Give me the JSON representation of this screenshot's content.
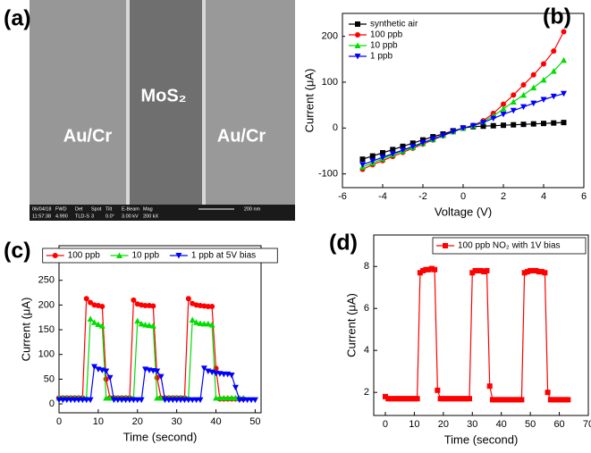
{
  "image_panel": {
    "panel_label": "(a)",
    "material_label": "MoS₂",
    "electrode_labels": [
      "Au/Cr",
      "Au/Cr"
    ],
    "info_bar": {
      "headers": [
        "06/04/18",
        "FWD",
        "Det",
        "Spot",
        "Tilt",
        "E-Beam",
        "Mag"
      ],
      "values": [
        "11:57:38",
        "4.990",
        "TLD-S",
        "3",
        "0.0°",
        "3.00 kV",
        "200 kX"
      ]
    },
    "scale_bar": "200 nm"
  },
  "chart_data": [
    {
      "type": "line",
      "panel_label": "(b)",
      "xlabel": "Voltage (V)",
      "ylabel": "Current (μA)",
      "x": [
        -5,
        -4.5,
        -4,
        -3.5,
        -3,
        -2.5,
        -2,
        -1.5,
        -1,
        -0.5,
        0,
        0.5,
        1,
        1.5,
        2,
        2.5,
        3,
        3.5,
        4,
        4.5,
        5
      ],
      "xlim": [
        -6,
        6
      ],
      "xticks": [
        -6,
        -4,
        -2,
        0,
        2,
        4,
        6
      ],
      "ylim": [
        -130,
        250
      ],
      "yticks": [
        -100,
        0,
        100,
        200
      ],
      "legend": "upper left",
      "legend_orientation": "vertical",
      "series": [
        {
          "name": "synthetic air",
          "color": "#000000",
          "marker": "square",
          "values": [
            -68,
            -61,
            -54,
            -47,
            -40,
            -33,
            -26,
            -19,
            -13,
            -6,
            0,
            3,
            4,
            5,
            6,
            7,
            8,
            9,
            10,
            11,
            12
          ]
        },
        {
          "name": "100 ppb",
          "color": "#ff0000",
          "marker": "circle",
          "values": [
            -90,
            -80,
            -71,
            -62,
            -53,
            -44,
            -35,
            -26,
            -17,
            -8,
            0,
            6,
            16,
            32,
            52,
            72,
            94,
            116,
            140,
            168,
            210
          ]
        },
        {
          "name": "10 ppb",
          "color": "#00dd00",
          "marker": "triangle-up",
          "values": [
            -85,
            -76,
            -67,
            -58,
            -50,
            -42,
            -33,
            -25,
            -16,
            -8,
            0,
            5,
            14,
            26,
            42,
            57,
            72,
            88,
            105,
            124,
            148
          ]
        },
        {
          "name": "1 ppb",
          "color": "#0000ff",
          "marker": "triangle-down",
          "values": [
            -80,
            -72,
            -64,
            -56,
            -48,
            -40,
            -32,
            -24,
            -16,
            -8,
            0,
            5,
            12,
            21,
            30,
            38,
            46,
            54,
            62,
            69,
            75
          ]
        }
      ]
    },
    {
      "type": "line",
      "panel_label": "(c)",
      "xlabel": "Time (second)",
      "ylabel": "Current (μA)",
      "x": [
        0,
        1,
        2,
        3,
        4,
        5,
        6,
        7,
        8,
        9,
        10,
        11,
        12,
        13,
        14,
        15,
        16,
        17,
        18,
        19,
        20,
        21,
        22,
        23,
        24,
        25,
        26,
        27,
        28,
        29,
        30,
        31,
        32,
        33,
        34,
        35,
        36,
        37,
        38,
        39,
        40,
        41,
        42,
        43,
        44,
        45,
        46,
        47,
        48,
        49,
        50
      ],
      "xlim": [
        0,
        51.5
      ],
      "xticks": [
        0,
        10,
        20,
        30,
        40,
        50
      ],
      "ylim": [
        -18,
        320
      ],
      "yticks": [
        0,
        50,
        100,
        150,
        200,
        250
      ],
      "legend": "upper center",
      "legend_orientation": "horizontal",
      "series": [
        {
          "name": "100 ppb",
          "color": "#ff0000",
          "marker": "circle",
          "values": [
            12,
            12,
            12,
            12,
            12,
            12,
            12,
            213,
            205,
            200,
            199,
            197,
            50,
            12,
            12,
            12,
            12,
            12,
            12,
            210,
            202,
            200,
            199,
            199,
            198,
            53,
            12,
            12,
            12,
            12,
            12,
            12,
            12,
            213,
            203,
            200,
            199,
            198,
            197,
            197,
            72,
            10,
            10,
            10,
            10,
            10,
            10,
            10,
            null,
            null,
            null
          ]
        },
        {
          "name": "10 ppb",
          "color": "#00dd00",
          "marker": "triangle-up",
          "values": [
            12,
            12,
            12,
            12,
            12,
            12,
            12,
            12,
            172,
            165,
            161,
            158,
            12,
            12,
            12,
            12,
            12,
            12,
            12,
            12,
            168,
            162,
            160,
            159,
            158,
            12,
            12,
            12,
            12,
            12,
            12,
            12,
            12,
            12,
            170,
            165,
            163,
            162,
            162,
            160,
            12,
            12,
            12,
            12,
            12,
            12,
            12,
            12,
            null,
            null,
            null
          ]
        },
        {
          "name": "1 ppb at 5V bias",
          "color": "#0000ff",
          "marker": "triangle-down",
          "values": [
            8,
            8,
            8,
            8,
            8,
            8,
            8,
            8,
            8,
            75,
            70,
            68,
            66,
            53,
            8,
            8,
            8,
            8,
            8,
            8,
            8,
            8,
            70,
            68,
            67,
            66,
            55,
            8,
            8,
            8,
            8,
            8,
            8,
            8,
            8,
            8,
            8,
            72,
            66,
            64,
            62,
            61,
            60,
            60,
            58,
            33,
            8,
            8,
            8,
            8,
            8
          ]
        }
      ]
    },
    {
      "type": "line",
      "panel_label": "(d)",
      "xlabel": "Time (second)",
      "ylabel": "Current (μA)",
      "x": [
        0,
        1,
        2,
        3,
        4,
        5,
        6,
        7,
        8,
        9,
        10,
        11,
        12,
        13,
        14,
        15,
        16,
        17,
        18,
        19,
        20,
        21,
        22,
        23,
        24,
        25,
        26,
        27,
        28,
        29,
        30,
        31,
        32,
        33,
        34,
        35,
        36,
        37,
        38,
        39,
        40,
        41,
        42,
        43,
        44,
        45,
        46,
        47,
        48,
        49,
        50,
        51,
        52,
        53,
        54,
        55,
        56,
        57,
        58,
        59,
        60,
        61,
        62,
        63
      ],
      "xlim": [
        -4,
        70
      ],
      "xticks": [
        0,
        10,
        20,
        30,
        40,
        50,
        60,
        70
      ],
      "ylim": [
        0.9,
        9.5
      ],
      "yticks": [
        2,
        4,
        6,
        8
      ],
      "legend": "upper right",
      "legend_orientation": "vertical",
      "series": [
        {
          "name": "100 ppb NO₂  with 1V bias",
          "color": "#ff0000",
          "marker": "square",
          "values": [
            1.8,
            1.7,
            1.7,
            1.7,
            1.7,
            1.7,
            1.7,
            1.7,
            1.7,
            1.7,
            1.7,
            1.7,
            7.7,
            7.8,
            7.85,
            7.85,
            7.9,
            7.85,
            2.1,
            1.7,
            1.7,
            1.7,
            1.7,
            1.7,
            1.7,
            1.7,
            1.7,
            1.7,
            1.7,
            1.7,
            7.7,
            7.8,
            7.8,
            7.8,
            7.75,
            7.8,
            2.3,
            1.65,
            1.65,
            1.65,
            1.65,
            1.65,
            1.65,
            1.65,
            1.65,
            1.65,
            1.65,
            1.65,
            7.7,
            7.75,
            7.8,
            7.8,
            7.8,
            7.75,
            7.75,
            7.7,
            2.0,
            1.65,
            1.65,
            1.65,
            1.65,
            1.65,
            1.65,
            1.65
          ]
        }
      ]
    }
  ]
}
